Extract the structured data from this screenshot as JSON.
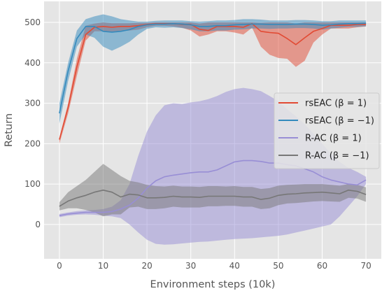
{
  "chart_data": {
    "type": "line",
    "xlabel": "Environment steps (10k)",
    "ylabel": "Return",
    "xlim": [
      -3.5,
      73.5
    ],
    "ylim": [
      -85,
      552
    ],
    "xticks": [
      0,
      10,
      20,
      30,
      40,
      50,
      60,
      70
    ],
    "yticks": [
      0,
      100,
      200,
      300,
      400,
      500
    ],
    "grid": true,
    "legend_position": "center-right",
    "background": "#e5e5e5",
    "series": [
      {
        "name_base": "rsEAC",
        "name_param": "(β = 1)",
        "color": "#e24a33",
        "x": [
          0,
          2,
          4,
          6,
          8,
          10,
          12,
          14,
          16,
          18,
          20,
          22,
          24,
          26,
          28,
          30,
          32,
          34,
          36,
          38,
          40,
          42,
          44,
          46,
          48,
          50,
          52,
          54,
          56,
          58,
          60,
          62,
          64,
          66,
          68,
          70
        ],
        "mean": [
          210,
          290,
          390,
          470,
          488,
          490,
          488,
          490,
          490,
          492,
          495,
          497,
          497,
          497,
          495,
          495,
          483,
          480,
          490,
          490,
          490,
          488,
          497,
          478,
          475,
          473,
          460,
          445,
          462,
          478,
          485,
          493,
          493,
          493,
          495,
          495
        ],
        "upper": [
          215,
          300,
          410,
          492,
          497,
          500,
          498,
          498,
          498,
          499,
          499,
          500,
          500,
          500,
          500,
          500,
          497,
          500,
          500,
          500,
          500,
          500,
          500,
          499,
          500,
          500,
          500,
          497,
          500,
          500,
          500,
          500,
          500,
          500,
          500,
          500
        ],
        "lower": [
          200,
          275,
          368,
          455,
          478,
          478,
          476,
          478,
          480,
          482,
          488,
          492,
          492,
          490,
          487,
          480,
          465,
          470,
          478,
          478,
          475,
          470,
          487,
          440,
          420,
          412,
          410,
          390,
          405,
          450,
          470,
          485,
          485,
          485,
          488,
          490
        ]
      },
      {
        "name_base": "rsEAC",
        "name_param": "(β = −1)",
        "color": "#348abd",
        "x": [
          0,
          2,
          4,
          6,
          8,
          10,
          12,
          14,
          16,
          18,
          20,
          22,
          24,
          26,
          28,
          30,
          32,
          34,
          36,
          38,
          40,
          42,
          44,
          46,
          48,
          50,
          52,
          54,
          56,
          58,
          60,
          62,
          64,
          66,
          68,
          70
        ],
        "mean": [
          275,
          380,
          460,
          490,
          490,
          478,
          476,
          478,
          482,
          490,
          494,
          496,
          496,
          497,
          496,
          494,
          490,
          490,
          492,
          492,
          494,
          495,
          496,
          496,
          495,
          495,
          495,
          496,
          496,
          495,
          493,
          494,
          496,
          497,
          497,
          498
        ],
        "upper": [
          300,
          400,
          480,
          508,
          515,
          520,
          515,
          508,
          505,
          502,
          502,
          504,
          505,
          505,
          505,
          503,
          502,
          503,
          505,
          505,
          506,
          508,
          508,
          507,
          505,
          505,
          505,
          506,
          506,
          505,
          503,
          503,
          505,
          505,
          505,
          505
        ],
        "lower": [
          250,
          355,
          440,
          470,
          462,
          440,
          430,
          440,
          452,
          470,
          484,
          488,
          487,
          488,
          486,
          483,
          478,
          478,
          480,
          480,
          482,
          483,
          485,
          485,
          484,
          485,
          485,
          486,
          486,
          485,
          482,
          485,
          487,
          489,
          489,
          490
        ]
      },
      {
        "name_base": "R-AC",
        "name_param": "(β = 1)",
        "color": "#988ed5",
        "x": [
          0,
          2,
          4,
          6,
          8,
          10,
          12,
          14,
          16,
          18,
          20,
          22,
          24,
          26,
          28,
          30,
          32,
          34,
          36,
          38,
          40,
          42,
          44,
          46,
          48,
          50,
          52,
          54,
          56,
          58,
          60,
          62,
          64,
          66,
          68,
          70
        ],
        "mean": [
          22,
          26,
          28,
          30,
          30,
          30,
          32,
          38,
          48,
          65,
          90,
          108,
          118,
          122,
          125,
          128,
          130,
          130,
          135,
          145,
          155,
          158,
          158,
          156,
          152,
          152,
          148,
          145,
          138,
          130,
          118,
          110,
          105,
          100,
          98,
          110
        ],
        "upper": [
          26,
          30,
          33,
          35,
          36,
          38,
          44,
          60,
          100,
          170,
          230,
          270,
          295,
          300,
          298,
          302,
          305,
          310,
          318,
          328,
          335,
          338,
          335,
          330,
          318,
          305,
          285,
          268,
          248,
          225,
          200,
          175,
          155,
          140,
          130,
          118
        ],
        "lower": [
          18,
          22,
          24,
          25,
          24,
          22,
          20,
          16,
          0,
          -20,
          -38,
          -48,
          -50,
          -49,
          -47,
          -45,
          -43,
          -42,
          -40,
          -38,
          -36,
          -35,
          -34,
          -32,
          -30,
          -28,
          -25,
          -20,
          -15,
          -10,
          -5,
          0,
          20,
          45,
          70,
          100
        ]
      },
      {
        "name_base": "R-AC",
        "name_param": "(β = −1)",
        "color": "#777777",
        "x": [
          0,
          2,
          4,
          6,
          8,
          10,
          12,
          14,
          16,
          18,
          20,
          22,
          24,
          26,
          28,
          30,
          32,
          34,
          36,
          38,
          40,
          42,
          44,
          46,
          48,
          50,
          52,
          54,
          56,
          58,
          60,
          62,
          64,
          66,
          68,
          70
        ],
        "mean": [
          45,
          58,
          66,
          72,
          80,
          85,
          80,
          68,
          75,
          73,
          66,
          66,
          67,
          70,
          68,
          68,
          67,
          70,
          70,
          70,
          70,
          68,
          68,
          62,
          65,
          72,
          75,
          76,
          78,
          79,
          80,
          78,
          76,
          85,
          82,
          74
        ],
        "upper": [
          55,
          80,
          95,
          110,
          130,
          150,
          135,
          120,
          108,
          104,
          98,
          95,
          94,
          96,
          94,
          94,
          93,
          95,
          95,
          94,
          95,
          93,
          93,
          88,
          90,
          96,
          98,
          99,
          100,
          100,
          100,
          98,
          96,
          100,
          98,
          92
        ],
        "lower": [
          35,
          40,
          40,
          36,
          30,
          20,
          25,
          25,
          42,
          44,
          38,
          38,
          40,
          44,
          42,
          42,
          42,
          45,
          45,
          46,
          46,
          44,
          44,
          38,
          40,
          48,
          52,
          53,
          55,
          57,
          58,
          57,
          56,
          66,
          64,
          56
        ]
      }
    ]
  }
}
